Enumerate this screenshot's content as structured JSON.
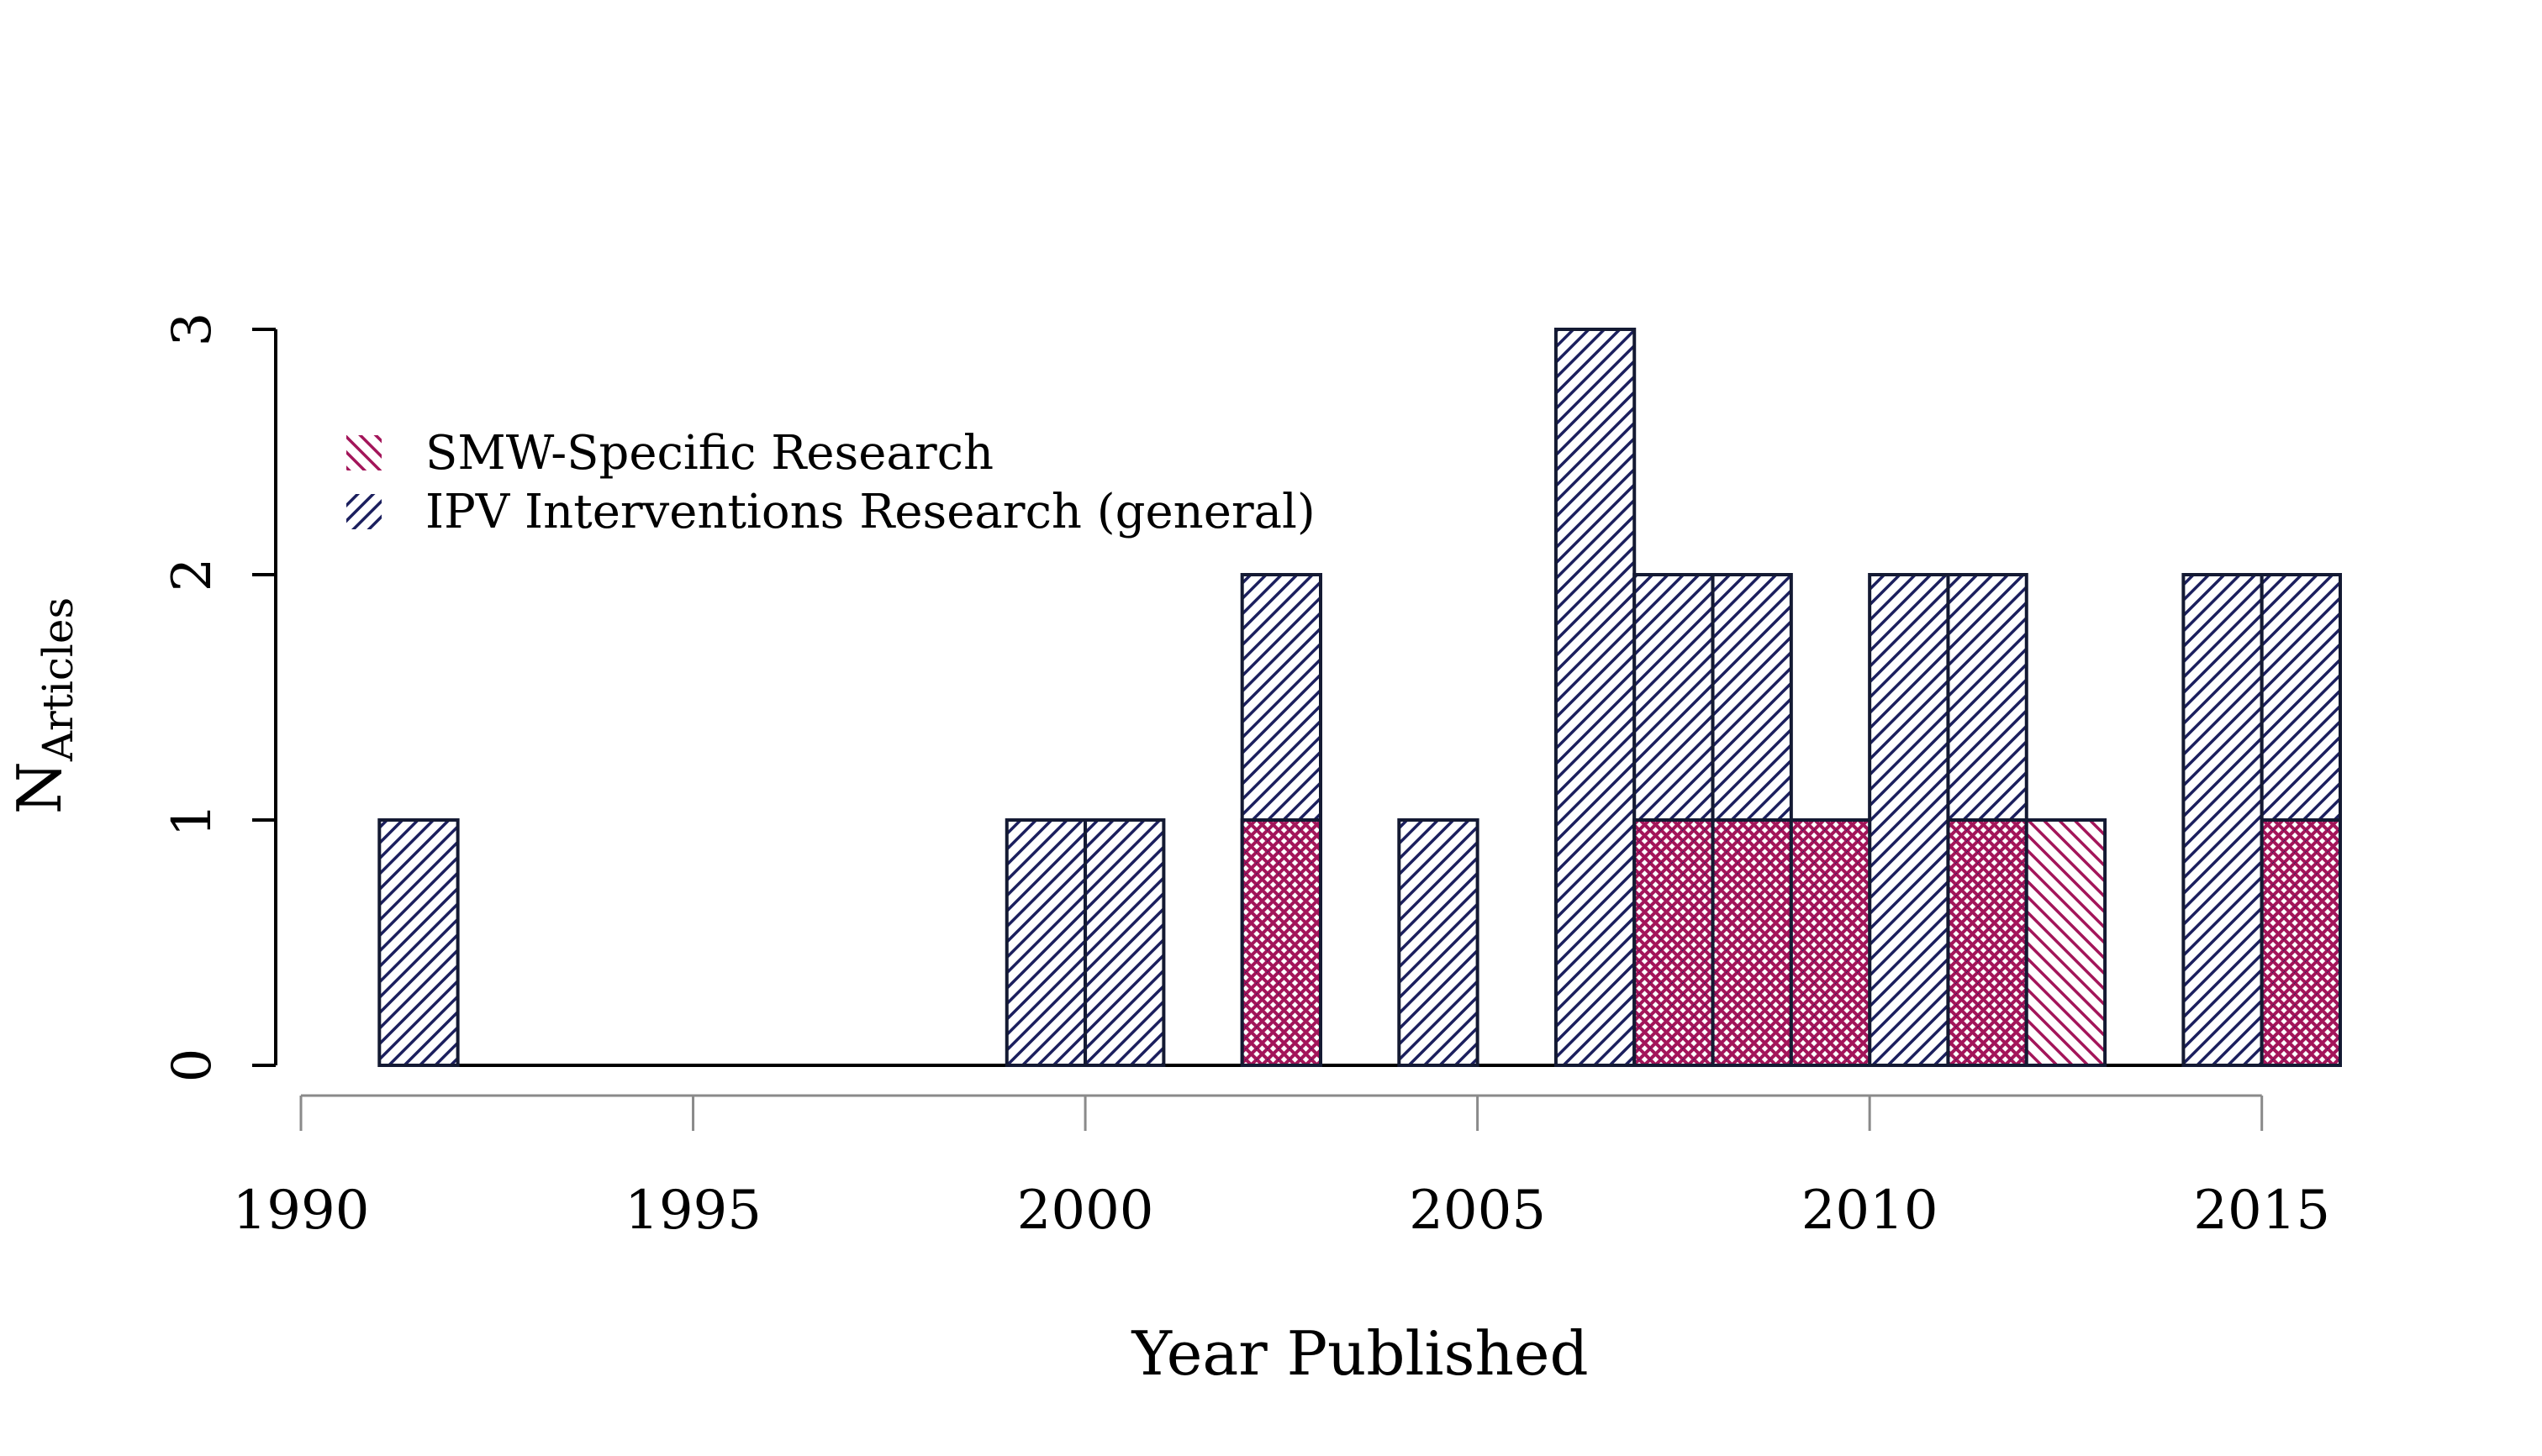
{
  "chart_data": {
    "type": "bar",
    "subtype": "histogram-overlay",
    "xlabel": "Year Published",
    "ylabel_main": "N",
    "ylabel_subscript": "Articles",
    "xlim": [
      1990,
      2016
    ],
    "ylim": [
      0,
      3
    ],
    "x_ticks": [
      1990,
      1995,
      2000,
      2005,
      2010,
      2015
    ],
    "y_ticks": [
      0,
      1,
      2,
      3
    ],
    "bin_width": 1,
    "legend_position": "top-left",
    "series": [
      {
        "name": "IPV Interventions Research (general)",
        "color": "#1b1f5e",
        "pattern": "diagonal-hatch",
        "bins": [
          {
            "start": 1991,
            "value": 1
          },
          {
            "start": 1992,
            "value": 0
          },
          {
            "start": 1993,
            "value": 0
          },
          {
            "start": 1994,
            "value": 0
          },
          {
            "start": 1995,
            "value": 0
          },
          {
            "start": 1996,
            "value": 0
          },
          {
            "start": 1997,
            "value": 0
          },
          {
            "start": 1998,
            "value": 0
          },
          {
            "start": 1999,
            "value": 1
          },
          {
            "start": 2000,
            "value": 1
          },
          {
            "start": 2001,
            "value": 0
          },
          {
            "start": 2002,
            "value": 2
          },
          {
            "start": 2003,
            "value": 0
          },
          {
            "start": 2004,
            "value": 1
          },
          {
            "start": 2005,
            "value": 0
          },
          {
            "start": 2006,
            "value": 3
          },
          {
            "start": 2007,
            "value": 2
          },
          {
            "start": 2008,
            "value": 2
          },
          {
            "start": 2009,
            "value": 1
          },
          {
            "start": 2010,
            "value": 2
          },
          {
            "start": 2011,
            "value": 2
          },
          {
            "start": 2012,
            "value": 0
          },
          {
            "start": 2013,
            "value": 0
          },
          {
            "start": 2014,
            "value": 2
          },
          {
            "start": 2015,
            "value": 2
          }
        ]
      },
      {
        "name": "SMW-Specific Research",
        "color": "#a3155a",
        "pattern": "diagonal-hatch",
        "bins": [
          {
            "start": 2002,
            "value": 1
          },
          {
            "start": 2007,
            "value": 1
          },
          {
            "start": 2008,
            "value": 1
          },
          {
            "start": 2009,
            "value": 1
          },
          {
            "start": 2011,
            "value": 1
          },
          {
            "start": 2012,
            "value": 1
          },
          {
            "start": 2015,
            "value": 1
          }
        ]
      }
    ]
  }
}
